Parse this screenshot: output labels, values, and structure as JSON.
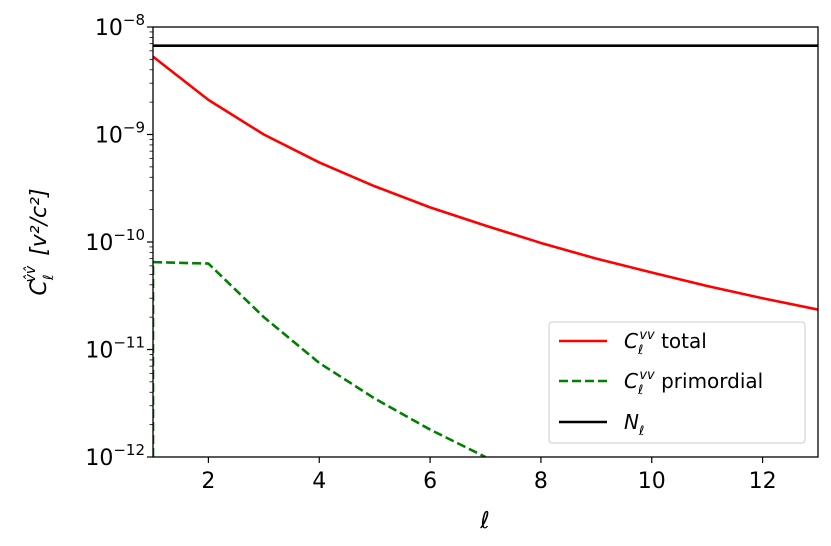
{
  "chart_data": {
    "type": "line",
    "title": "",
    "xlabel": "ℓ",
    "ylabel": {
      "symbol": "C",
      "superscript": "v̂v̂",
      "subscript": "ℓ",
      "units": "[v²/c²]"
    },
    "xlim": [
      1,
      13
    ],
    "ylim": [
      1e-12,
      1e-08
    ],
    "yscale": "log",
    "grid": false,
    "legend_position": "lower-right",
    "x_ticks": [
      2,
      4,
      6,
      8,
      10,
      12
    ],
    "y_ticks": [
      {
        "value": 1e-12,
        "base": "10",
        "exp": "−12"
      },
      {
        "value": 1e-11,
        "base": "10",
        "exp": "−11"
      },
      {
        "value": 1e-10,
        "base": "10",
        "exp": "−10"
      },
      {
        "value": 1e-09,
        "base": "10",
        "exp": "−9"
      },
      {
        "value": 1e-08,
        "base": "10",
        "exp": "−8"
      }
    ],
    "series": [
      {
        "name": "total",
        "legend": {
          "symbol": "C",
          "superscript": "vv",
          "subscript": "ℓ",
          "suffix": " total"
        },
        "color": "#ff0000",
        "dash": "solid",
        "x": [
          1,
          2,
          3,
          4,
          5,
          6,
          7,
          8,
          9,
          10,
          11,
          12,
          13
        ],
        "y": [
          5.3e-09,
          2.1e-09,
          1e-09,
          5.5e-10,
          3.3e-10,
          2.1e-10,
          1.42e-10,
          9.8e-11,
          7e-11,
          5.2e-11,
          3.9e-11,
          3e-11,
          2.35e-11
        ]
      },
      {
        "name": "primordial",
        "legend": {
          "symbol": "C",
          "superscript": "vv",
          "subscript": "ℓ",
          "suffix": " primordial"
        },
        "color": "#008000",
        "dash": "dashed",
        "x": [
          1,
          1,
          2,
          3,
          4,
          5,
          6,
          7
        ],
        "y": [
          1e-12,
          6.5e-11,
          6.3e-11,
          2e-11,
          7.5e-12,
          3.5e-12,
          1.8e-12,
          1e-12
        ]
      },
      {
        "name": "N",
        "legend": {
          "symbol": "N",
          "superscript": "",
          "subscript": "ℓ",
          "suffix": ""
        },
        "color": "#000000",
        "dash": "solid",
        "x": [
          1,
          13
        ],
        "y": [
          6.7e-09,
          6.7e-09
        ]
      }
    ]
  }
}
